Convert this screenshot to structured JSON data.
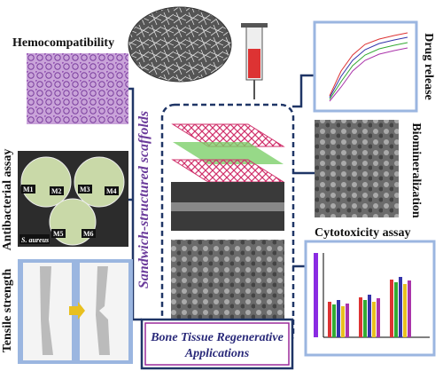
{
  "labels": {
    "hemocompatibility": "Hemocompatibility",
    "antibacterial": "Antibacterial assay",
    "tensile": "Tensile strength",
    "scaffolds": "Sandwich-structured scaffolds",
    "drug_release": "Drug release",
    "biomineralization": "Biomineralization",
    "cytotoxicity": "Cytotoxicity assay"
  },
  "petri": {
    "samples": [
      "M1",
      "M2",
      "M3",
      "M4",
      "M5",
      "M6"
    ],
    "organism": "S. aureus"
  },
  "footer": {
    "line1": "Bone Tissue Regenerative",
    "line2": "Applications"
  }
}
